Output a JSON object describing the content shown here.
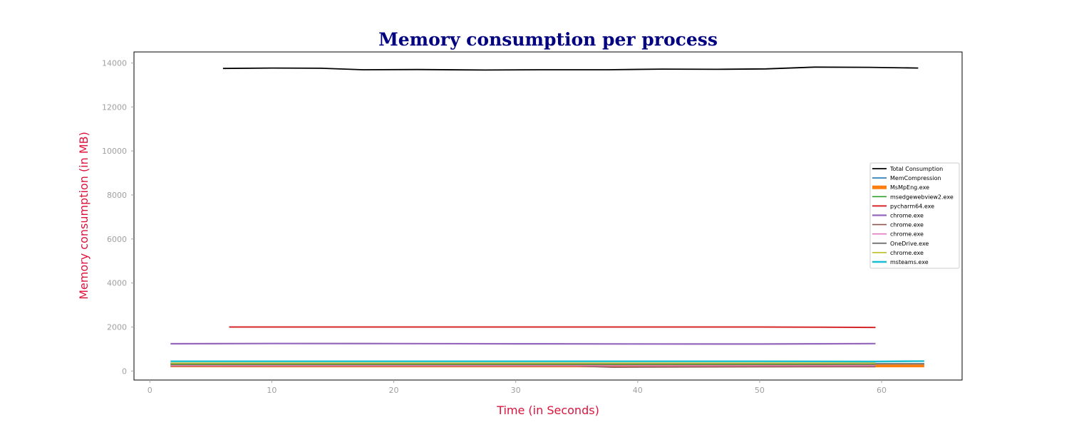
{
  "chart_data": {
    "type": "line",
    "title": "Memory consumption per process",
    "xlabel": "Time (in Seconds)",
    "ylabel": "Memory consumption (in MB)",
    "xlim": [
      -1.3,
      66.6
    ],
    "ylim": [
      -410,
      14500
    ],
    "xticks": [
      0,
      10,
      20,
      30,
      40,
      50,
      60
    ],
    "yticks": [
      0,
      2000,
      4000,
      6000,
      8000,
      10000,
      12000,
      14000
    ],
    "grid": false,
    "legend_position": "center-right",
    "series": [
      {
        "name": "Total Consumption",
        "color": "#000000",
        "width": 1.8,
        "x": [
          6.0,
          10.0,
          14.0,
          17.5,
          22.0,
          27.5,
          32.0,
          37.5,
          42.0,
          46.5,
          50.5,
          54.5,
          59.0,
          63.0
        ],
        "y": [
          13750,
          13770,
          13760,
          13690,
          13700,
          13680,
          13690,
          13690,
          13720,
          13710,
          13730,
          13810,
          13800,
          13770
        ]
      },
      {
        "name": "MemCompression",
        "color": "#1f77b4",
        "width": 1.6,
        "x": [
          1.7,
          10.0,
          20.0,
          30.0,
          40.0,
          50.0,
          59.5
        ],
        "y": [
          330,
          330,
          335,
          335,
          330,
          330,
          330
        ]
      },
      {
        "name": "MsMpEng.exe",
        "color": "#ff7f0e",
        "width": 6,
        "x": [
          1.7,
          10.0,
          20.0,
          30.0,
          40.0,
          50.0,
          63.5
        ],
        "y": [
          270,
          265,
          265,
          265,
          265,
          265,
          265
        ]
      },
      {
        "name": "msedgewebview2.exe",
        "color": "#2ca02c",
        "width": 1.6,
        "x": [
          1.7,
          10.0,
          20.0,
          30.0,
          40.0,
          50.0,
          59.5
        ],
        "y": [
          300,
          300,
          300,
          300,
          300,
          300,
          300
        ]
      },
      {
        "name": "pycharm64.exe",
        "color": "#d62728",
        "width": 2.0,
        "x": [
          6.5,
          10.0,
          20.0,
          30.0,
          40.0,
          50.0,
          55.0,
          59.5
        ],
        "y": [
          2000,
          2000,
          2000,
          2000,
          2000,
          2000,
          1990,
          1980
        ]
      },
      {
        "name": "chrome.exe",
        "color": "#9467bd",
        "width": 2.2,
        "x": [
          1.7,
          10.0,
          20.0,
          30.0,
          40.0,
          50.0,
          55.0,
          59.5
        ],
        "y": [
          1240,
          1250,
          1245,
          1235,
          1230,
          1225,
          1235,
          1245
        ]
      },
      {
        "name": "chrome.exe",
        "color": "#8c564b",
        "width": 1.6,
        "x": [
          1.7,
          10.0,
          20.0,
          30.0,
          35.0,
          38.0,
          42.0,
          50.0,
          59.5
        ],
        "y": [
          220,
          225,
          225,
          225,
          220,
          170,
          180,
          190,
          195
        ]
      },
      {
        "name": "chrome.exe",
        "color": "#e377c2",
        "width": 1.6,
        "x": [
          1.7,
          10.0,
          20.0,
          30.0,
          40.0,
          50.0,
          59.5
        ],
        "y": [
          240,
          240,
          240,
          240,
          240,
          240,
          240
        ]
      },
      {
        "name": "OneDrive.exe",
        "color": "#7f7f7f",
        "width": 2.2,
        "x": [
          1.7,
          10.0,
          20.0,
          30.0,
          40.0,
          50.0,
          59.5,
          63.5
        ],
        "y": [
          340,
          340,
          340,
          340,
          340,
          340,
          330,
          330
        ]
      },
      {
        "name": "chrome.exe",
        "color": "#bcbd22",
        "width": 1.6,
        "x": [
          1.7,
          10.0,
          20.0,
          30.0,
          40.0,
          50.0,
          59.5
        ],
        "y": [
          360,
          360,
          360,
          360,
          360,
          360,
          360
        ]
      },
      {
        "name": "msteams.exe",
        "color": "#17becf",
        "width": 2.4,
        "x": [
          1.7,
          10.0,
          20.0,
          30.0,
          40.0,
          50.0,
          59.5,
          63.5
        ],
        "y": [
          440,
          440,
          440,
          440,
          440,
          440,
          430,
          450
        ]
      }
    ]
  }
}
